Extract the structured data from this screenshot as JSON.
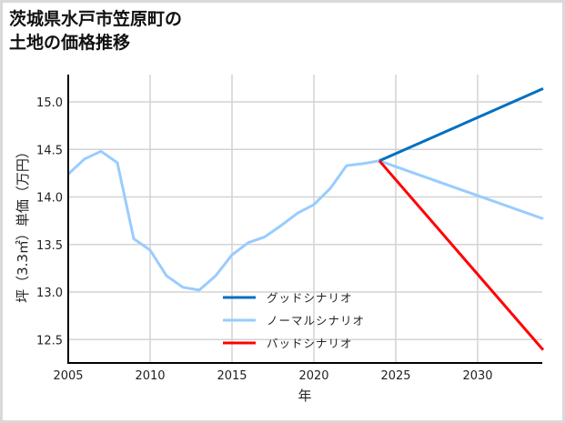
{
  "title": "茨城県水戸市笠原町の\n土地の価格推移",
  "colors": {
    "good": "#0070c0",
    "normal": "#99ccff",
    "bad": "#ff0000",
    "grid": "#d3d3d3",
    "axis": "#000000",
    "frame": "#d9d9d9"
  },
  "chart_data": {
    "type": "line",
    "title": "茨城県水戸市笠原町の土地の価格推移",
    "xlabel": "年",
    "ylabel": "坪（3.3㎡）単価（万円）",
    "xlim": [
      2005,
      2034
    ],
    "ylim": [
      12.25,
      15.3
    ],
    "x_ticks": [
      2005,
      2010,
      2015,
      2020,
      2025,
      2030
    ],
    "y_ticks": [
      12.5,
      13.0,
      13.5,
      14.0,
      14.5,
      15.0
    ],
    "y_tick_labels": [
      "12.5",
      "13.0",
      "13.5",
      "14.0",
      "14.5",
      "15.0"
    ],
    "grid": true,
    "legend_position": "lower center",
    "series": [
      {
        "name": "グッドシナリオ",
        "color": "#0070c0",
        "x": [
          2024,
          2034
        ],
        "values": [
          14.38,
          15.14
        ]
      },
      {
        "name": "ノーマルシナリオ",
        "color": "#99ccff",
        "x": [
          2005,
          2006,
          2007,
          2008,
          2009,
          2010,
          2011,
          2012,
          2013,
          2014,
          2015,
          2016,
          2017,
          2018,
          2019,
          2020,
          2021,
          2022,
          2023,
          2024,
          2034
        ],
        "values": [
          14.24,
          14.4,
          14.48,
          14.36,
          13.56,
          13.44,
          13.17,
          13.05,
          13.02,
          13.17,
          13.39,
          13.52,
          13.58,
          13.7,
          13.83,
          13.92,
          14.09,
          14.33,
          14.35,
          14.38,
          13.77
        ]
      },
      {
        "name": "バッドシナリオ",
        "color": "#ff0000",
        "x": [
          2024,
          2034
        ],
        "values": [
          14.38,
          12.39
        ]
      }
    ]
  }
}
